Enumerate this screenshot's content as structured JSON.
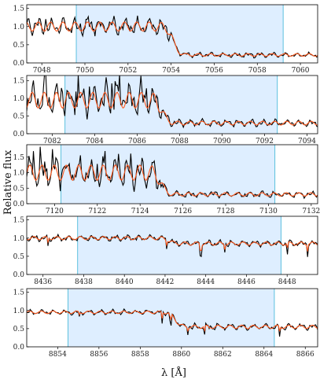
{
  "figure": {
    "ylabel": "Relative flux",
    "xlabel": "λ [Å]",
    "colors": {
      "observed": "#000000",
      "model": "#ff5a1f",
      "shade": "#deeeff",
      "bound": "#5bc0de"
    }
  },
  "chart_data": [
    {
      "type": "line",
      "xlim": [
        7047.3,
        7060.8
      ],
      "ylim": [
        0.0,
        1.6
      ],
      "xticks": [
        7048,
        7050,
        7052,
        7054,
        7056,
        7058,
        7060
      ],
      "yticks": [
        0.0,
        0.5,
        1.0,
        1.5
      ],
      "shaded_region": [
        7049.6,
        7059.2
      ],
      "profile": {
        "kind": "step",
        "edge": 7054.1,
        "left_level": 1.0,
        "right_level": 0.22,
        "left_amp": 0.28,
        "right_amp": 0.08,
        "spikes": 0.3,
        "seed": 1
      }
    },
    {
      "type": "line",
      "xlim": [
        7080.8,
        7094.5
      ],
      "ylim": [
        0.0,
        1.65
      ],
      "xticks": [
        7082,
        7084,
        7086,
        7088,
        7090,
        7092,
        7094
      ],
      "yticks": [
        0.0,
        0.5,
        1.0,
        1.5
      ],
      "shaded_region": [
        7082.6,
        7092.6
      ],
      "profile": {
        "kind": "step",
        "edge": 7087.2,
        "left_level": 0.95,
        "right_level": 0.3,
        "left_amp": 0.5,
        "right_amp": 0.12,
        "spikes": 0.6,
        "seed": 2
      }
    },
    {
      "type": "line",
      "xlim": [
        7118.7,
        7132.3
      ],
      "ylim": [
        0.0,
        1.9
      ],
      "xticks": [
        7120,
        7122,
        7124,
        7126,
        7128,
        7130,
        7132
      ],
      "yticks": [
        0.0,
        0.5,
        1.0,
        1.5
      ],
      "shaded_region": [
        7120.3,
        7130.3
      ],
      "profile": {
        "kind": "step",
        "edge": 7125.0,
        "left_level": 1.0,
        "right_level": 0.3,
        "left_amp": 0.55,
        "right_amp": 0.12,
        "spikes": 0.7,
        "seed": 3
      }
    },
    {
      "type": "line",
      "xlim": [
        8435.2,
        8449.5
      ],
      "ylim": [
        0.0,
        1.6
      ],
      "xticks": [
        8436,
        8438,
        8440,
        8442,
        8444,
        8446,
        8448
      ],
      "yticks": [
        0.0,
        0.5,
        1.0,
        1.5
      ],
      "shaded_region": [
        8437.7,
        8447.7
      ],
      "profile": {
        "kind": "flat",
        "edge": 8442.2,
        "left_level": 1.0,
        "right_level": 0.85,
        "left_amp": 0.1,
        "right_amp": 0.1,
        "spikes": 0.0,
        "seed": 4
      }
    },
    {
      "type": "line",
      "xlim": [
        8852.5,
        8866.6
      ],
      "ylim": [
        0.0,
        1.6
      ],
      "xticks": [
        8854,
        8856,
        8858,
        8860,
        8862,
        8864,
        8866
      ],
      "yticks": [
        0.0,
        0.5,
        1.0,
        1.5
      ],
      "shaded_region": [
        8854.5,
        8864.5
      ],
      "profile": {
        "kind": "flat",
        "edge": 8859.7,
        "left_level": 0.95,
        "right_level": 0.55,
        "left_amp": 0.08,
        "right_amp": 0.1,
        "spikes": 0.0,
        "seed": 5
      }
    }
  ]
}
